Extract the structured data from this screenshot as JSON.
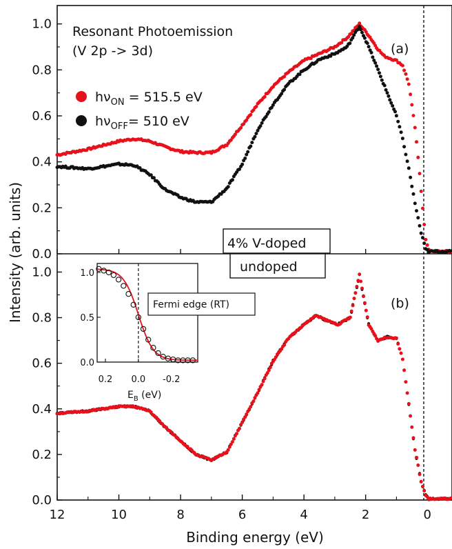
{
  "chart_data": [
    {
      "type": "scatter",
      "panel_label": "(a)",
      "annotation": [
        "Resonant Photoemission",
        "(V 2p -> 3d)"
      ],
      "sample_label": "4% V-doped",
      "xlabel": "Binding energy (eV)",
      "ylabel": "Intensity (arb. units)",
      "xlim": [
        12,
        -0.8
      ],
      "ylim": [
        0,
        1.08
      ],
      "x_reversed": true,
      "x_ticks": [
        12,
        10,
        8,
        6,
        4,
        2,
        0
      ],
      "y_ticks": [
        "0.0",
        "0.2",
        "0.4",
        "0.6",
        "0.8",
        "1.0"
      ],
      "fermi_level_marker": 0,
      "legend_position": "upper-left",
      "series": [
        {
          "name_main": "hν",
          "name_sub": "ON",
          "name_rest": " = 515.5 eV",
          "color": "#e8101a",
          "points": [
            [
              12,
              0.43
            ],
            [
              11,
              0.455
            ],
            [
              10,
              0.49
            ],
            [
              9.5,
              0.5
            ],
            [
              9,
              0.49
            ],
            [
              8.5,
              0.465
            ],
            [
              8,
              0.445
            ],
            [
              7.5,
              0.44
            ],
            [
              7,
              0.44
            ],
            [
              6.5,
              0.475
            ],
            [
              6,
              0.56
            ],
            [
              5.5,
              0.65
            ],
            [
              5,
              0.73
            ],
            [
              4.5,
              0.79
            ],
            [
              4,
              0.84
            ],
            [
              3.5,
              0.87
            ],
            [
              3,
              0.9
            ],
            [
              2.6,
              0.94
            ],
            [
              2.2,
              1.0
            ],
            [
              1.9,
              0.95
            ],
            [
              1.6,
              0.89
            ],
            [
              1.4,
              0.86
            ],
            [
              1.2,
              0.85
            ],
            [
              1.0,
              0.84
            ],
            [
              0.8,
              0.82
            ],
            [
              0.6,
              0.74
            ],
            [
              0.4,
              0.55
            ],
            [
              0.25,
              0.35
            ],
            [
              0.15,
              0.2
            ],
            [
              0.05,
              0.06
            ],
            [
              -0.05,
              0.015
            ],
            [
              -0.3,
              0.01
            ],
            [
              -0.8,
              0.01
            ]
          ]
        },
        {
          "name_main": "hν",
          "name_sub": "OFF",
          "name_rest": "= 510 eV",
          "color": "#111111",
          "points": [
            [
              12,
              0.38
            ],
            [
              11,
              0.37
            ],
            [
              10,
              0.39
            ],
            [
              9.5,
              0.385
            ],
            [
              9,
              0.345
            ],
            [
              8.5,
              0.28
            ],
            [
              8,
              0.245
            ],
            [
              7.5,
              0.225
            ],
            [
              7,
              0.225
            ],
            [
              6.5,
              0.285
            ],
            [
              6,
              0.39
            ],
            [
              5.5,
              0.54
            ],
            [
              5,
              0.65
            ],
            [
              4.5,
              0.74
            ],
            [
              4,
              0.8
            ],
            [
              3.5,
              0.845
            ],
            [
              3,
              0.87
            ],
            [
              2.6,
              0.9
            ],
            [
              2.2,
              0.99
            ],
            [
              1.9,
              0.9
            ],
            [
              1.6,
              0.8
            ],
            [
              1.3,
              0.7
            ],
            [
              1.0,
              0.6
            ],
            [
              0.8,
              0.5
            ],
            [
              0.6,
              0.37
            ],
            [
              0.4,
              0.22
            ],
            [
              0.2,
              0.09
            ],
            [
              0.05,
              0.02
            ],
            [
              -0.05,
              0.01
            ],
            [
              -0.8,
              0.01
            ]
          ]
        }
      ]
    },
    {
      "type": "scatter",
      "panel_label": "(b)",
      "sample_label": "undoped",
      "xlabel": "Binding energy (eV)",
      "ylabel": "Intensity (arb. units)",
      "xlim": [
        12,
        -0.8
      ],
      "ylim": [
        0,
        1.08
      ],
      "x_reversed": true,
      "x_ticks": [
        12,
        10,
        8,
        6,
        4,
        2,
        0
      ],
      "y_ticks": [
        "0.0",
        "0.2",
        "0.4",
        "0.6",
        "0.8",
        "1.0"
      ],
      "fermi_level_marker": 0,
      "series": [
        {
          "name": "",
          "color": "#111111",
          "points": [
            [
              12,
              0.38
            ],
            [
              11,
              0.39
            ],
            [
              10,
              0.41
            ],
            [
              9.5,
              0.41
            ],
            [
              9,
              0.39
            ],
            [
              8.5,
              0.32
            ],
            [
              8,
              0.26
            ],
            [
              7.5,
              0.2
            ],
            [
              7,
              0.175
            ],
            [
              6.5,
              0.21
            ],
            [
              6,
              0.34
            ],
            [
              5.5,
              0.47
            ],
            [
              5,
              0.61
            ],
            [
              4.5,
              0.71
            ],
            [
              4,
              0.77
            ],
            [
              3.6,
              0.81
            ],
            [
              3.3,
              0.79
            ],
            [
              2.9,
              0.77
            ],
            [
              2.5,
              0.8
            ],
            [
              2.2,
              0.99
            ],
            [
              1.9,
              0.77
            ],
            [
              1.6,
              0.7
            ],
            [
              1.3,
              0.715
            ],
            [
              1.0,
              0.71
            ],
            [
              0.8,
              0.62
            ],
            [
              0.6,
              0.42
            ],
            [
              0.4,
              0.22
            ],
            [
              0.2,
              0.08
            ],
            [
              0.05,
              0.02
            ],
            [
              -0.05,
              0.005
            ],
            [
              -0.8,
              0.005
            ]
          ]
        },
        {
          "name": "",
          "color": "#e8101a",
          "points": [
            [
              12,
              0.38
            ],
            [
              11,
              0.39
            ],
            [
              10,
              0.41
            ],
            [
              9.5,
              0.41
            ],
            [
              9,
              0.39
            ],
            [
              8.5,
              0.32
            ],
            [
              8,
              0.26
            ],
            [
              7.5,
              0.2
            ],
            [
              7,
              0.175
            ],
            [
              6.5,
              0.21
            ],
            [
              6,
              0.34
            ],
            [
              5.5,
              0.47
            ],
            [
              5,
              0.61
            ],
            [
              4.5,
              0.71
            ],
            [
              4,
              0.77
            ],
            [
              3.6,
              0.81
            ],
            [
              3.3,
              0.79
            ],
            [
              2.9,
              0.77
            ],
            [
              2.5,
              0.8
            ],
            [
              2.2,
              0.99
            ],
            [
              1.9,
              0.77
            ],
            [
              1.6,
              0.7
            ],
            [
              1.3,
              0.715
            ],
            [
              1.0,
              0.71
            ],
            [
              0.8,
              0.62
            ],
            [
              0.6,
              0.42
            ],
            [
              0.4,
              0.22
            ],
            [
              0.2,
              0.08
            ],
            [
              0.05,
              0.02
            ],
            [
              -0.05,
              0.005
            ],
            [
              -0.8,
              0.005
            ]
          ]
        }
      ],
      "inset": {
        "label": "Fermi edge (RT)",
        "xlabel_main": "E",
        "xlabel_sub": "B",
        "xlabel_rest": " (eV)",
        "xlim": [
          0.25,
          -0.36
        ],
        "ylim": [
          0,
          1.1
        ],
        "x_ticks": [
          "0.2",
          "0.0",
          "-0.2"
        ],
        "x_tick_values": [
          0.2,
          0.0,
          -0.2
        ],
        "y_ticks": [
          "0.0",
          "0.5",
          "1.0"
        ],
        "y_tick_values": [
          0.0,
          0.5,
          1.0
        ],
        "fermi_level_marker": 0,
        "fit_color": "#e8101a",
        "data_points": [
          [
            0.24,
            1.04
          ],
          [
            0.21,
            1.02
          ],
          [
            0.18,
            1.0
          ],
          [
            0.15,
            0.97
          ],
          [
            0.12,
            0.92
          ],
          [
            0.09,
            0.85
          ],
          [
            0.06,
            0.76
          ],
          [
            0.03,
            0.64
          ],
          [
            0.0,
            0.5
          ],
          [
            -0.03,
            0.37
          ],
          [
            -0.06,
            0.25
          ],
          [
            -0.09,
            0.16
          ],
          [
            -0.12,
            0.1
          ],
          [
            -0.15,
            0.06
          ],
          [
            -0.18,
            0.04
          ],
          [
            -0.21,
            0.03
          ],
          [
            -0.24,
            0.02
          ],
          [
            -0.27,
            0.02
          ],
          [
            -0.3,
            0.02
          ],
          [
            -0.33,
            0.02
          ]
        ]
      }
    }
  ]
}
